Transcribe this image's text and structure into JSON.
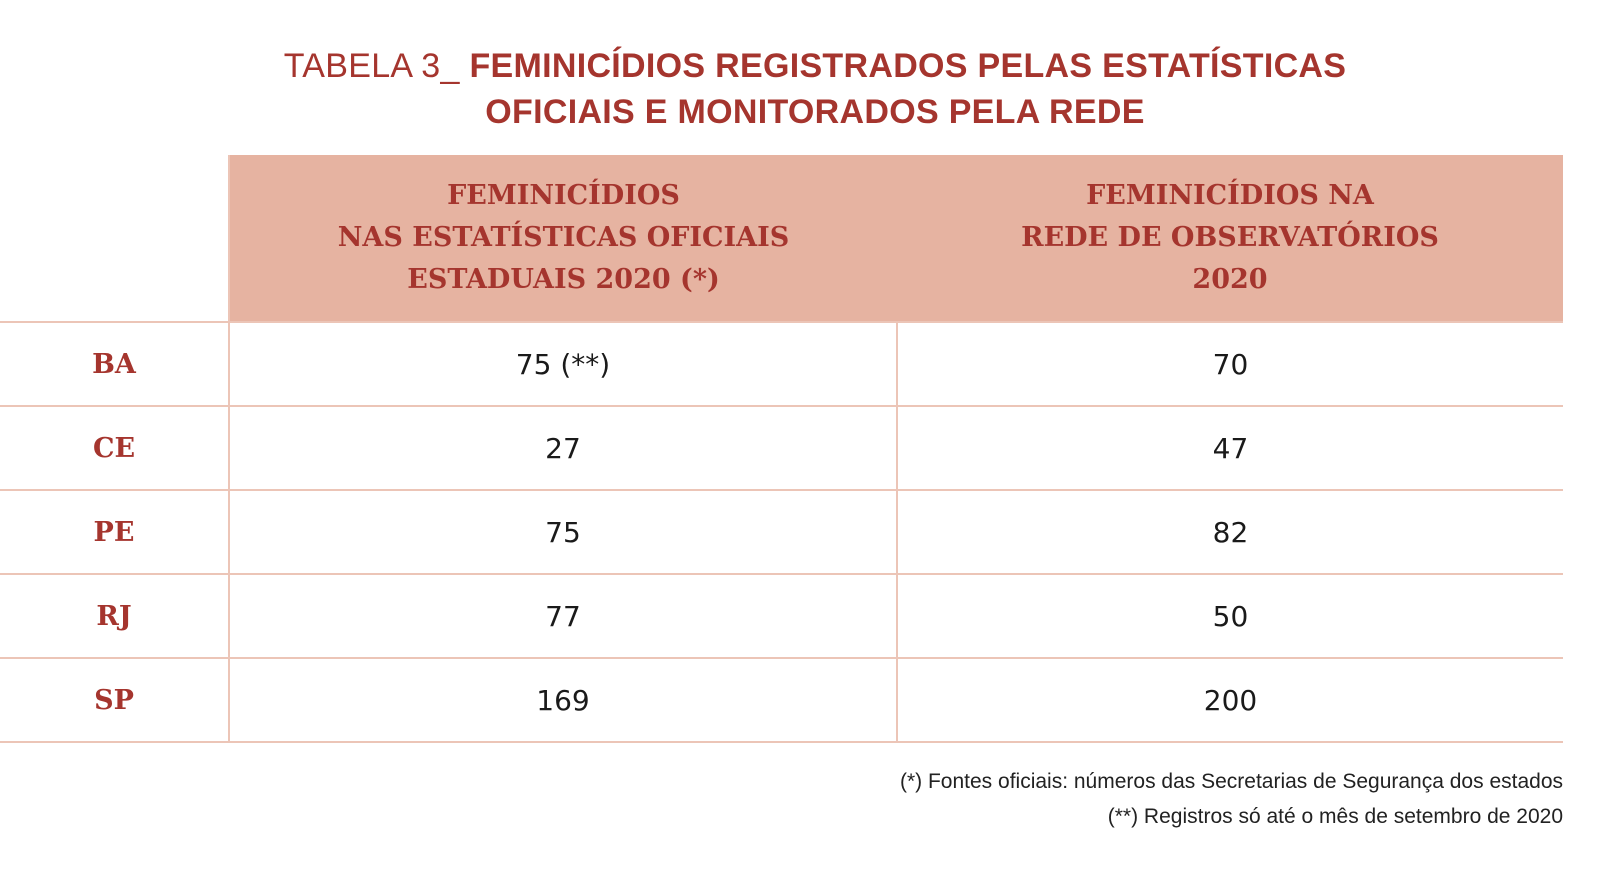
{
  "title": {
    "prefix": "TABELA 3_ ",
    "line1": "FEMINICÍDIOS REGISTRADOS PELAS ESTATÍSTICAS",
    "line2": "OFICIAIS E MONITORADOS PELA REDE"
  },
  "table": {
    "headers": [
      {
        "lines": [
          "FEMINICÍDIOS",
          "NAS ESTATÍSTICAS OFICIAIS",
          "ESTADUAIS 2020 (*)"
        ]
      },
      {
        "lines": [
          "FEMINICÍDIOS NA",
          "REDE DE OBSERVATÓRIOS",
          "2020"
        ]
      }
    ],
    "rows": [
      {
        "state": "BA",
        "official": "75 (**)",
        "network": "70"
      },
      {
        "state": "CE",
        "official": "27",
        "network": "47"
      },
      {
        "state": "PE",
        "official": "75",
        "network": "82"
      },
      {
        "state": "RJ",
        "official": "77",
        "network": "50"
      },
      {
        "state": "SP",
        "official": "169",
        "network": "200"
      }
    ]
  },
  "notes": [
    "(*) Fontes oficiais: números das Secretarias de Segurança dos estados",
    "(**) Registros só até o mês de setembro de 2020"
  ],
  "colors": {
    "accent": "#a5352e",
    "header_bg": "#e6b3a1",
    "rule": "#ecc5b7"
  }
}
